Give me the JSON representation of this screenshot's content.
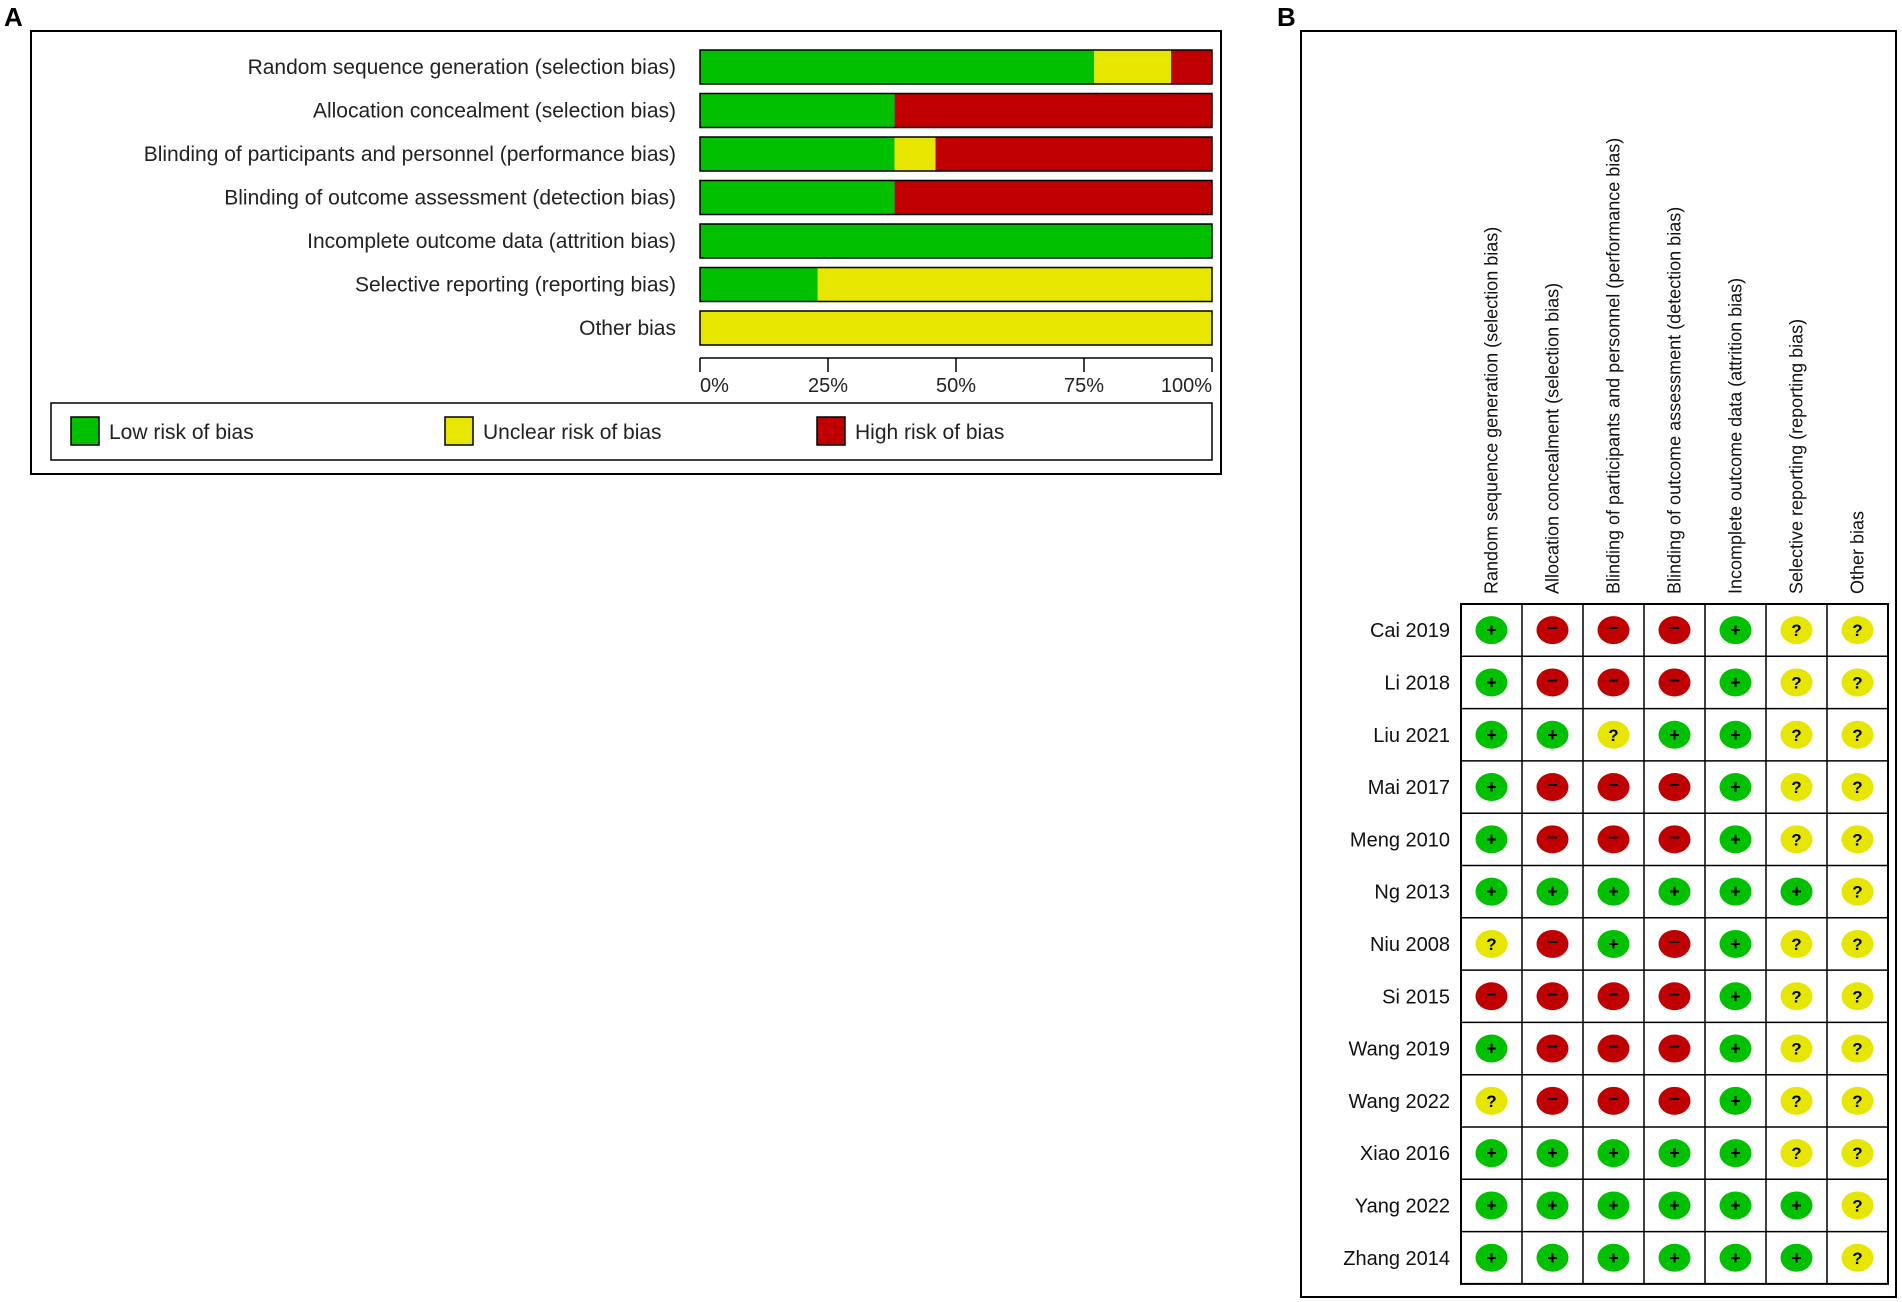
{
  "panel_a_label": "A",
  "panel_b_label": "B",
  "colors": {
    "low": "#00c000",
    "unclear": "#e6e600",
    "high": "#c00000"
  },
  "chart_data": [
    {
      "type": "bar",
      "orientation": "horizontal",
      "stacked": true,
      "categories": [
        "Random sequence generation (selection bias)",
        "Allocation concealment (selection bias)",
        "Blinding of participants and personnel (performance bias)",
        "Blinding of outcome assessment (detection bias)",
        "Incomplete outcome data (attrition bias)",
        "Selective reporting (reporting bias)",
        "Other bias"
      ],
      "series": [
        {
          "name": "Low risk of bias",
          "color": "#00c000",
          "values": [
            77,
            38,
            38,
            38,
            100,
            23,
            0
          ]
        },
        {
          "name": "Unclear risk of bias",
          "color": "#e6e600",
          "values": [
            15,
            0,
            8,
            0,
            0,
            77,
            100
          ]
        },
        {
          "name": "High risk of bias",
          "color": "#c00000",
          "values": [
            8,
            62,
            54,
            62,
            0,
            0,
            0
          ]
        }
      ],
      "xlim": [
        0,
        100
      ],
      "xticks": [
        "0%",
        "25%",
        "50%",
        "75%",
        "100%"
      ],
      "legend": "bottom"
    },
    {
      "type": "table",
      "columns": [
        "Random sequence generation (selection bias)",
        "Allocation concealment (selection bias)",
        "Blinding of participants and personnel (performance bias)",
        "Blinding of outcome assessment (detection bias)",
        "Incomplete outcome data (attrition bias)",
        "Selective reporting (reporting bias)",
        "Other bias"
      ],
      "rows": [
        {
          "study": "Cai 2019",
          "ratings": [
            "+",
            "-",
            "-",
            "-",
            "+",
            "?",
            "?"
          ]
        },
        {
          "study": "Li  2018",
          "ratings": [
            "+",
            "-",
            "-",
            "-",
            "+",
            "?",
            "?"
          ]
        },
        {
          "study": "Liu 2021",
          "ratings": [
            "+",
            "+",
            "?",
            "+",
            "+",
            "?",
            "?"
          ]
        },
        {
          "study": "Mai 2017",
          "ratings": [
            "+",
            "-",
            "-",
            "-",
            "+",
            "?",
            "?"
          ]
        },
        {
          "study": "Meng 2010",
          "ratings": [
            "+",
            "-",
            "-",
            "-",
            "+",
            "?",
            "?"
          ]
        },
        {
          "study": "Ng 2013",
          "ratings": [
            "+",
            "+",
            "+",
            "+",
            "+",
            "+",
            "?"
          ]
        },
        {
          "study": "Niu 2008",
          "ratings": [
            "?",
            "-",
            "+",
            "-",
            "+",
            "?",
            "?"
          ]
        },
        {
          "study": "Si 2015",
          "ratings": [
            "-",
            "-",
            "-",
            "-",
            "+",
            "?",
            "?"
          ]
        },
        {
          "study": "Wang 2019",
          "ratings": [
            "+",
            "-",
            "-",
            "-",
            "+",
            "?",
            "?"
          ]
        },
        {
          "study": "Wang 2022",
          "ratings": [
            "?",
            "-",
            "-",
            "-",
            "+",
            "?",
            "?"
          ]
        },
        {
          "study": "Xiao 2016",
          "ratings": [
            "+",
            "+",
            "+",
            "+",
            "+",
            "?",
            "?"
          ]
        },
        {
          "study": "Yang 2022",
          "ratings": [
            "+",
            "+",
            "+",
            "+",
            "+",
            "+",
            "?"
          ]
        },
        {
          "study": "Zhang 2014",
          "ratings": [
            "+",
            "+",
            "+",
            "+",
            "+",
            "+",
            "?"
          ]
        }
      ]
    }
  ]
}
